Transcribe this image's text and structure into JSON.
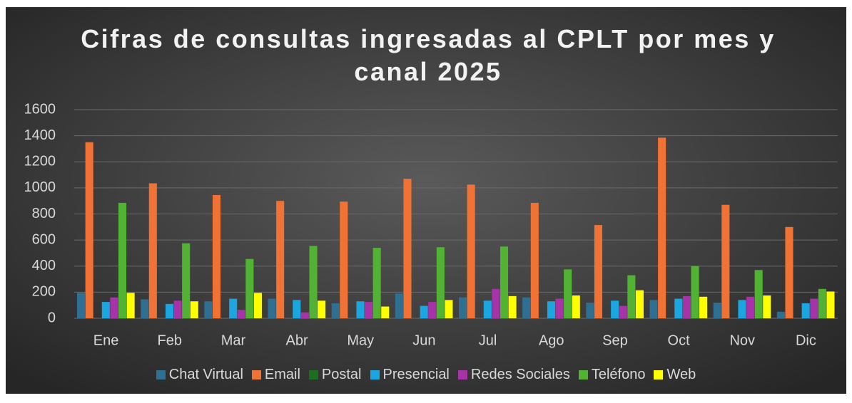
{
  "chart_data": {
    "type": "bar",
    "title": "Cifras de consultas ingresadas al CPLT por mes y canal 2025",
    "categories": [
      "Ene",
      "Feb",
      "Mar",
      "Abr",
      "May",
      "Jun",
      "Jul",
      "Ago",
      "Sep",
      "Oct",
      "Nov",
      "Dic"
    ],
    "series": [
      {
        "name": "Chat Virtual",
        "color": "#2f6f92",
        "values": [
          195,
          145,
          130,
          150,
          115,
          190,
          160,
          160,
          120,
          140,
          120,
          50
        ]
      },
      {
        "name": "Email",
        "color": "#f07234",
        "values": [
          1350,
          1035,
          945,
          900,
          895,
          1070,
          1025,
          885,
          715,
          1385,
          870,
          700
        ]
      },
      {
        "name": "Postal",
        "color": "#1e6e22",
        "values": [
          0,
          0,
          0,
          0,
          0,
          0,
          0,
          0,
          0,
          0,
          0,
          0
        ]
      },
      {
        "name": "Presencial",
        "color": "#1ba6e0",
        "values": [
          125,
          110,
          150,
          140,
          130,
          95,
          135,
          130,
          135,
          150,
          140,
          115
        ]
      },
      {
        "name": "Redes Sociales",
        "color": "#a733a8",
        "values": [
          160,
          135,
          65,
          45,
          125,
          125,
          225,
          150,
          95,
          170,
          165,
          150
        ]
      },
      {
        "name": "Teléfono",
        "color": "#52b234",
        "values": [
          885,
          575,
          455,
          555,
          540,
          545,
          550,
          375,
          330,
          400,
          370,
          225
        ]
      },
      {
        "name": "Web",
        "color": "#ffff00",
        "values": [
          195,
          130,
          195,
          135,
          90,
          140,
          170,
          175,
          215,
          165,
          175,
          205
        ]
      }
    ],
    "ylim": [
      0,
      1600
    ],
    "yticks": [
      0,
      200,
      400,
      600,
      800,
      1000,
      1200,
      1400,
      1600
    ],
    "grid": true,
    "legend": "bottom"
  }
}
